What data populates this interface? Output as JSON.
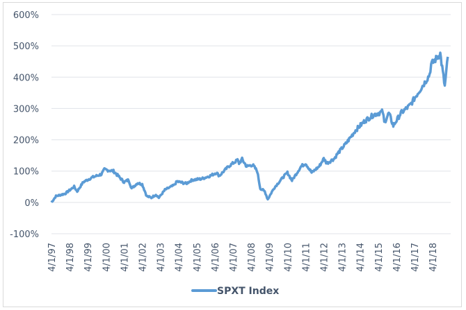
{
  "chart_data": {
    "type": "line",
    "title": "",
    "xlabel": "",
    "ylabel": "",
    "ylim": [
      -100,
      600
    ],
    "y_ticks": [
      "600%",
      "500%",
      "400%",
      "300%",
      "200%",
      "100%",
      "0%",
      "-100%"
    ],
    "y_tick_values": [
      600,
      500,
      400,
      300,
      200,
      100,
      0,
      -100
    ],
    "x_ticks": [
      "4/1/97",
      "4/1/98",
      "4/1/99",
      "4/1/00",
      "4/1/01",
      "4/1/02",
      "4/1/03",
      "4/1/04",
      "4/1/05",
      "4/1/06",
      "4/1/07",
      "4/1/08",
      "4/1/09",
      "4/1/10",
      "4/1/11",
      "4/1/12",
      "4/1/13",
      "4/1/14",
      "4/1/15",
      "4/1/16",
      "4/1/17",
      "4/1/18"
    ],
    "grid": "horizontal",
    "legend_position": "bottom",
    "series": [
      {
        "name": "SPXT Index",
        "color": "#5b9bd5",
        "unit": "%",
        "points": [
          [
            "1997-04",
            0
          ],
          [
            "1997-07",
            20
          ],
          [
            "1998-01",
            28
          ],
          [
            "1998-07",
            50
          ],
          [
            "1998-09",
            35
          ],
          [
            "1999-01",
            65
          ],
          [
            "1999-07",
            80
          ],
          [
            "2000-01",
            90
          ],
          [
            "2000-03",
            105
          ],
          [
            "2000-09",
            100
          ],
          [
            "2001-01",
            80
          ],
          [
            "2001-04",
            65
          ],
          [
            "2001-07",
            72
          ],
          [
            "2001-09",
            45
          ],
          [
            "2002-01",
            62
          ],
          [
            "2002-04",
            58
          ],
          [
            "2002-07",
            20
          ],
          [
            "2002-10",
            15
          ],
          [
            "2003-01",
            25
          ],
          [
            "2003-03",
            15
          ],
          [
            "2003-07",
            40
          ],
          [
            "2004-01",
            55
          ],
          [
            "2004-03",
            67
          ],
          [
            "2004-09",
            60
          ],
          [
            "2005-01",
            72
          ],
          [
            "2005-07",
            75
          ],
          [
            "2006-01",
            85
          ],
          [
            "2006-05",
            95
          ],
          [
            "2006-07",
            85
          ],
          [
            "2007-01",
            115
          ],
          [
            "2007-07",
            135
          ],
          [
            "2007-08",
            125
          ],
          [
            "2007-10",
            138
          ],
          [
            "2008-01",
            115
          ],
          [
            "2008-05",
            120
          ],
          [
            "2008-08",
            100
          ],
          [
            "2008-10",
            45
          ],
          [
            "2009-01",
            35
          ],
          [
            "2009-03",
            10
          ],
          [
            "2009-07",
            45
          ],
          [
            "2010-01",
            80
          ],
          [
            "2010-04",
            95
          ],
          [
            "2010-07",
            70
          ],
          [
            "2011-01",
            115
          ],
          [
            "2011-04",
            125
          ],
          [
            "2011-08",
            95
          ],
          [
            "2012-01",
            115
          ],
          [
            "2012-04",
            140
          ],
          [
            "2012-06",
            125
          ],
          [
            "2012-11",
            140
          ],
          [
            "2013-01",
            155
          ],
          [
            "2013-07",
            190
          ],
          [
            "2014-01",
            230
          ],
          [
            "2014-03",
            240
          ],
          [
            "2014-07",
            260
          ],
          [
            "2015-01",
            280
          ],
          [
            "2015-07",
            290
          ],
          [
            "2015-08",
            255
          ],
          [
            "2015-11",
            285
          ],
          [
            "2016-02",
            245
          ],
          [
            "2016-07",
            285
          ],
          [
            "2017-01",
            310
          ],
          [
            "2017-07",
            355
          ],
          [
            "2018-01",
            400
          ],
          [
            "2018-02",
            410
          ],
          [
            "2018-03",
            440
          ],
          [
            "2018-09",
            475
          ],
          [
            "2018-12",
            370
          ],
          [
            "2019-02",
            465
          ]
        ]
      }
    ]
  }
}
